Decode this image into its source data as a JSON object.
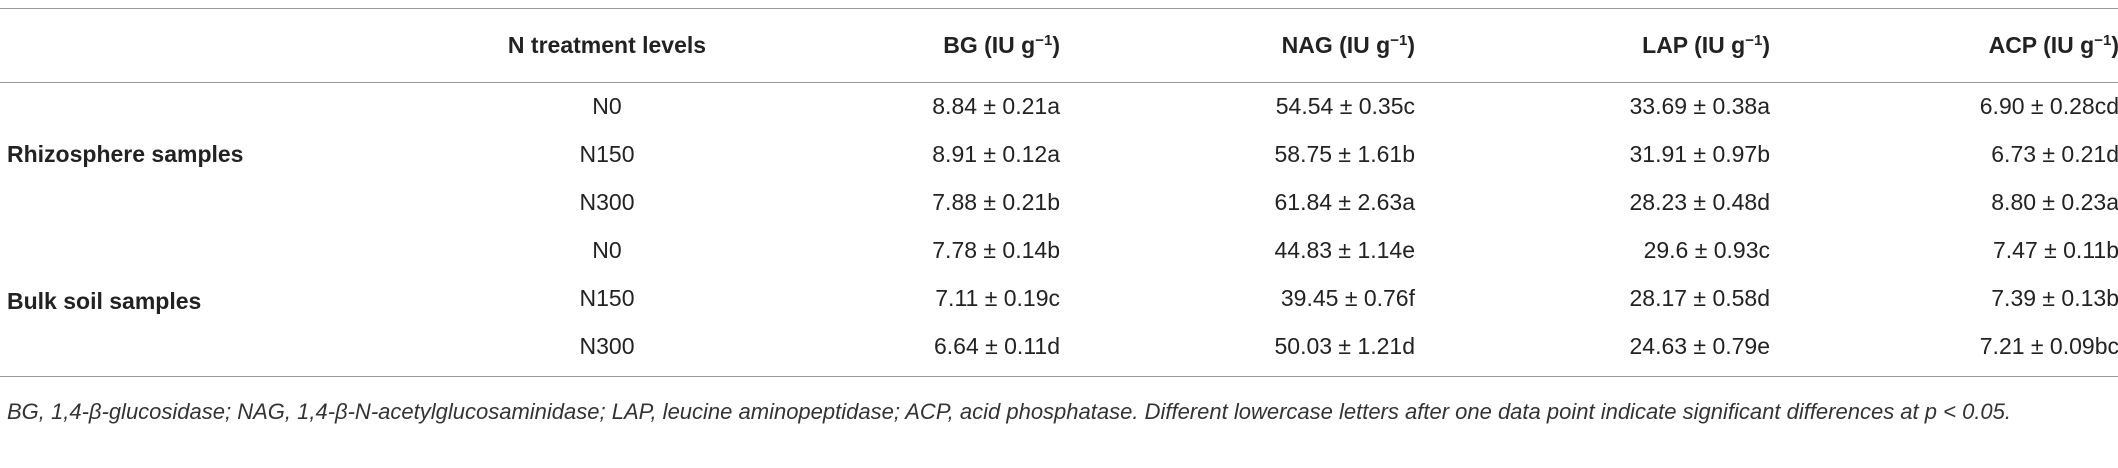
{
  "table": {
    "header": [
      {
        "main": "N treatment levels"
      },
      {
        "main": "BG (IU g",
        "sup": "−1",
        "end": ")"
      },
      {
        "main": "NAG (IU g",
        "sup": "−1",
        "end": ")"
      },
      {
        "main": "LAP (IU g",
        "sup": "−1",
        "end": ")"
      },
      {
        "main": "ACP (IU g",
        "sup": "−1",
        "end": ")"
      }
    ],
    "groups": [
      {
        "label": "Rhizosphere samples",
        "rows": [
          [
            "N0",
            "8.84 ± 0.21a",
            "54.54 ± 0.35c",
            "33.69 ± 0.38a",
            "6.90 ± 0.28cd"
          ],
          [
            "N150",
            "8.91 ± 0.12a",
            "58.75 ± 1.61b",
            "31.91 ± 0.97b",
            "6.73 ± 0.21d"
          ],
          [
            "N300",
            "7.88 ± 0.21b",
            "61.84 ± 2.63a",
            "28.23 ± 0.48d",
            "8.80 ± 0.23a"
          ]
        ]
      },
      {
        "label": "Bulk soil samples",
        "rows": [
          [
            "N0",
            "7.78 ± 0.14b",
            "44.83 ± 1.14e",
            "29.6 ± 0.93c",
            "7.47 ± 0.11b"
          ],
          [
            "N150",
            "7.11 ± 0.19c",
            "39.45 ± 0.76f",
            "28.17 ± 0.58d",
            "7.39 ± 0.13b"
          ],
          [
            "N300",
            "6.64 ± 0.11d",
            "50.03 ± 1.21d",
            "24.63 ± 0.79e",
            "7.21 ± 0.09bc"
          ]
        ]
      }
    ],
    "footnote": "BG, 1,4-β-glucosidase; NAG, 1,4-β-N-acetylglucosaminidase; LAP, leucine aminopeptidase; ACP, acid phosphatase. Different lowercase letters after one data point indicate significant differences at p < 0.05."
  }
}
